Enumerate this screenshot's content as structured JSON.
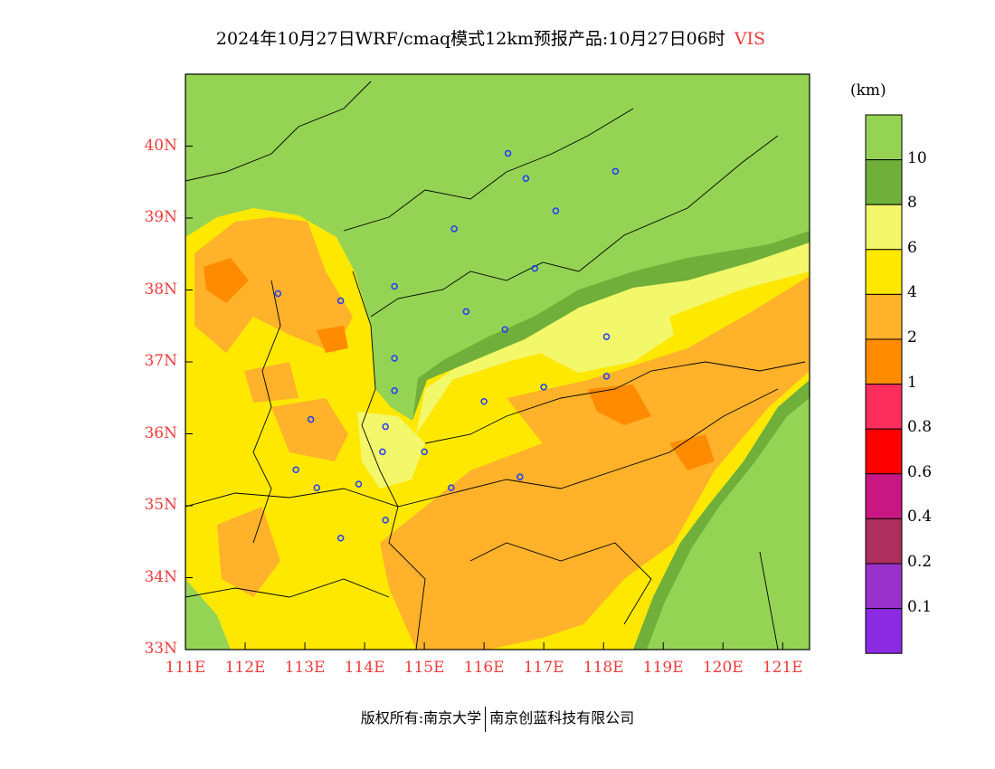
{
  "title": {
    "main": "2024年10月27日WRF/cmaq模式12km预报产品:10月27日06时",
    "variable": "VIS"
  },
  "map": {
    "lon_range": [
      111,
      121.45
    ],
    "lat_range": [
      33,
      41
    ],
    "lat_labels": [
      "40N",
      "39N",
      "38N",
      "37N",
      "36N",
      "35N",
      "34N",
      "33N"
    ],
    "lat_values": [
      40,
      39,
      38,
      37,
      36,
      35,
      34,
      33
    ],
    "lon_labels": [
      "111E",
      "112E",
      "113E",
      "114E",
      "115E",
      "116E",
      "117E",
      "118E",
      "119E",
      "120E",
      "121E"
    ],
    "lon_values": [
      111,
      112,
      113,
      114,
      115,
      116,
      117,
      118,
      119,
      120,
      121
    ],
    "stations": [
      [
        116.4,
        39.9
      ],
      [
        116.7,
        39.55
      ],
      [
        118.2,
        39.65
      ],
      [
        117.2,
        39.1
      ],
      [
        115.5,
        38.85
      ],
      [
        116.85,
        38.3
      ],
      [
        114.5,
        38.05
      ],
      [
        113.6,
        37.85
      ],
      [
        112.55,
        37.95
      ],
      [
        115.7,
        37.7
      ],
      [
        116.35,
        37.45
      ],
      [
        114.5,
        37.05
      ],
      [
        118.05,
        37.35
      ],
      [
        117.0,
        36.65
      ],
      [
        118.05,
        36.8
      ],
      [
        114.5,
        36.6
      ],
      [
        116.0,
        36.45
      ],
      [
        114.35,
        36.1
      ],
      [
        113.1,
        36.2
      ],
      [
        115.0,
        35.75
      ],
      [
        114.3,
        35.75
      ],
      [
        116.6,
        35.4
      ],
      [
        112.85,
        35.5
      ],
      [
        113.2,
        35.25
      ],
      [
        113.9,
        35.3
      ],
      [
        115.45,
        35.25
      ],
      [
        114.35,
        34.8
      ],
      [
        113.6,
        34.55
      ]
    ]
  },
  "colorbar": {
    "unit": "(km)",
    "labels": [
      "10",
      "8",
      "6",
      "4",
      "2",
      "1",
      "0.8",
      "0.6",
      "0.4",
      "0.2",
      "0.1"
    ],
    "colors": [
      "#95d354",
      "#6faf3a",
      "#f3f76a",
      "#ffe800",
      "#ffb22a",
      "#ff8c00",
      "#fd2e5c",
      "#ff0000",
      "#c81782",
      "#ad2f5e",
      "#9932cc",
      "#8a2be2"
    ]
  },
  "footer": {
    "left": "版权所有:南京大学",
    "right": "南京创蓝科技有限公司"
  }
}
